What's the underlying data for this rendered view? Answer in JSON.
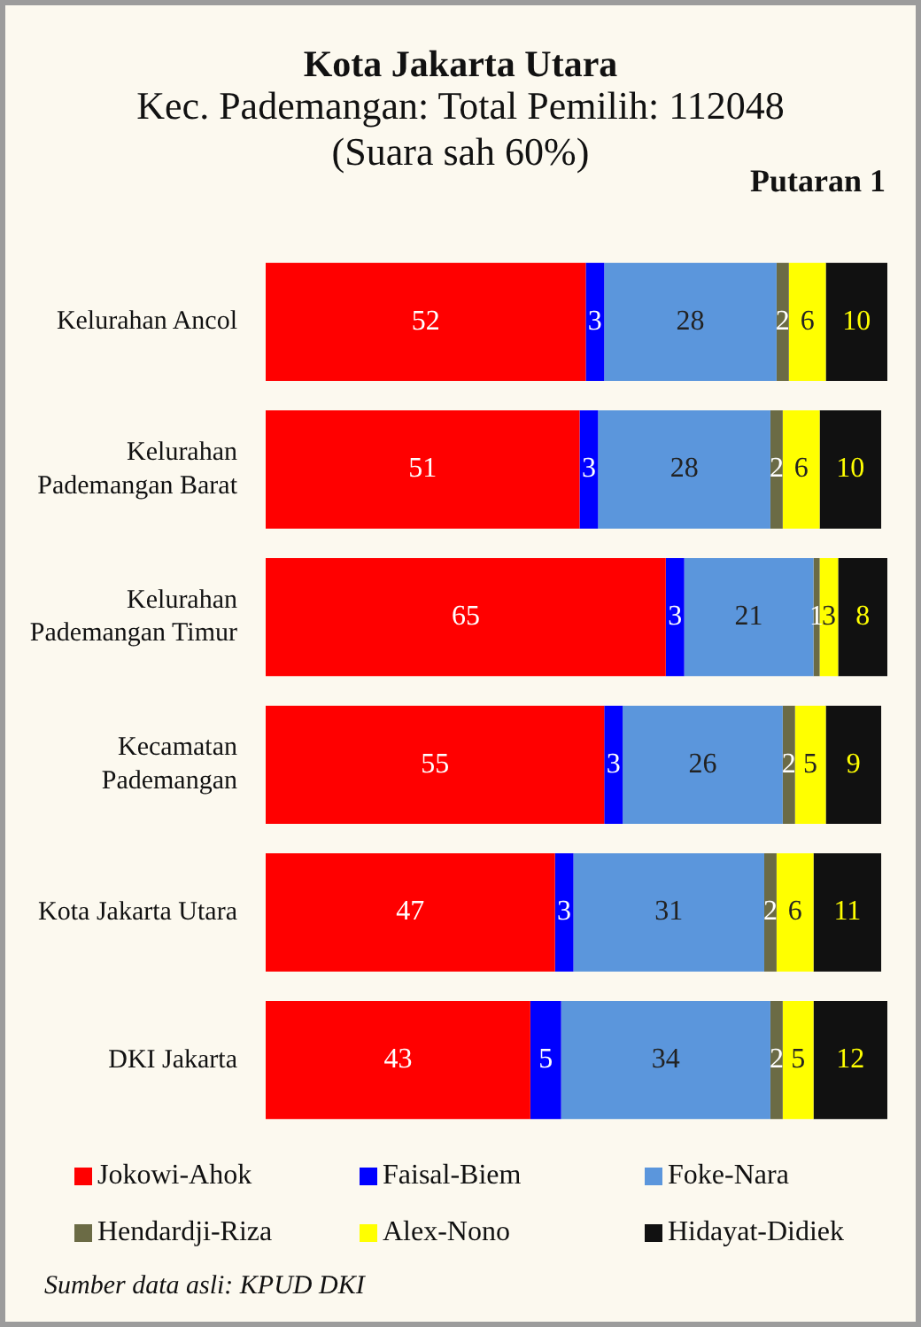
{
  "chart_data": {
    "type": "bar",
    "orientation": "horizontal",
    "stacked": true,
    "title": "Kota Jakarta Utara",
    "subtitle": "Kec. Pademangan: Total Pemilih: 112048\n(Suara sah 60%)",
    "categories": [
      "Kelurahan Ancol",
      "Kelurahan Pademangan Barat",
      "Kelurahan Pademangan Timur",
      "Kecamatan Pademangan",
      "Kota Jakarta Utara",
      "DKI Jakarta"
    ],
    "series": [
      {
        "name": "Jokowi-Ahok",
        "color": "#ff0000",
        "values": [
          52,
          51,
          65,
          55,
          47,
          43
        ]
      },
      {
        "name": "Faisal-Biem",
        "color": "#0000ff",
        "values": [
          3,
          3,
          3,
          3,
          3,
          5
        ]
      },
      {
        "name": "Foke-Nara",
        "color": "#5b96dc",
        "values": [
          28,
          28,
          21,
          26,
          31,
          34
        ]
      },
      {
        "name": "Hendardji-Riza",
        "color": "#6b6b45",
        "values": [
          2,
          2,
          1,
          2,
          2,
          2
        ]
      },
      {
        "name": "Alex-Nono",
        "color": "#ffff00",
        "values": [
          6,
          6,
          3,
          5,
          6,
          5
        ]
      },
      {
        "name": "Hidayat-Didiek",
        "color": "#111111",
        "values": [
          10,
          10,
          8,
          9,
          11,
          12
        ]
      }
    ],
    "data_labels": true,
    "legend": "bottom",
    "tick_labels": "y",
    "annotations": [
      "Putaran 1",
      "Sumber data asli: KPUD DKI"
    ]
  }
}
